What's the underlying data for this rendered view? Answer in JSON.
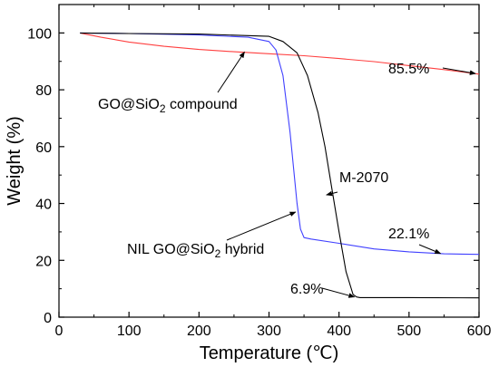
{
  "chart_data": {
    "type": "line",
    "xlabel": "Temperature (℃)",
    "ylabel": "Weight (%)",
    "xlim": [
      0,
      600
    ],
    "ylim": [
      0,
      110
    ],
    "xticks": [
      0,
      100,
      200,
      300,
      400,
      500,
      600
    ],
    "yticks": [
      0,
      20,
      40,
      60,
      80,
      100
    ],
    "grid": false,
    "series": [
      {
        "color": "#ff4040",
        "x": [
          30,
          60,
          100,
          150,
          200,
          250,
          300,
          350,
          400,
          450,
          500,
          550,
          600
        ],
        "y": [
          100,
          98.5,
          96.8,
          95.3,
          94.2,
          93.4,
          92.7,
          92.0,
          91.0,
          89.9,
          88.5,
          87.1,
          85.5
        ]
      },
      {
        "color": "#4040ff",
        "x": [
          30,
          100,
          200,
          270,
          300,
          310,
          320,
          330,
          340,
          345,
          350,
          360,
          400,
          450,
          500,
          550,
          600
        ],
        "y": [
          100,
          99.8,
          99.3,
          98.5,
          97.0,
          94.0,
          85.0,
          65.0,
          40.0,
          31.0,
          28.0,
          27.5,
          26.0,
          24.0,
          23.0,
          22.3,
          22.1
        ]
      },
      {
        "color": "#000000",
        "x": [
          30,
          100,
          200,
          300,
          320,
          340,
          355,
          370,
          380,
          390,
          400,
          410,
          420,
          425,
          430,
          500,
          600
        ],
        "y": [
          100,
          99.8,
          99.6,
          98.8,
          97.0,
          93.0,
          85.0,
          72.0,
          60.0,
          45.0,
          30.0,
          16.0,
          8.0,
          7.1,
          6.9,
          6.9,
          6.8
        ]
      }
    ],
    "annotations": [
      {
        "text": "85.5%",
        "anchor": [
          595,
          85.7
        ]
      },
      {
        "text": "GO@SiO2 compound",
        "main": "GO@SiO",
        "sub": "2",
        "rest": " compound",
        "anchor": [
          265,
          93.3
        ]
      },
      {
        "text": "M-2070",
        "anchor": [
          382,
          43
        ]
      },
      {
        "text": "22.1%",
        "anchor": [
          545,
          22.4
        ]
      },
      {
        "text": "NIL GO@SiO2 hybrid",
        "main": "NIL GO@SiO",
        "sub": "2",
        "rest": " hybrid",
        "anchor": [
          338,
          37
        ]
      },
      {
        "text": "6.9%",
        "anchor": [
          422,
          7.1
        ]
      }
    ]
  }
}
